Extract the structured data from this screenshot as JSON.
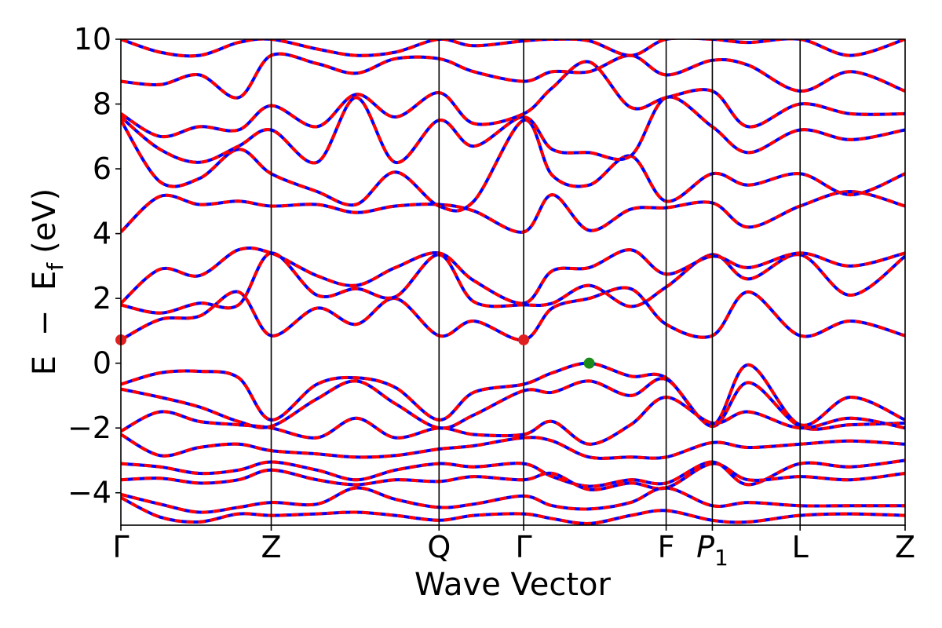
{
  "chart_data": {
    "type": "line",
    "title": "",
    "xlabel": "Wave Vector",
    "ylabel": {
      "E": "E",
      "minus": "−",
      "Ef_main": "E",
      "Ef_sub": "f",
      "unit": "(eV)"
    },
    "ylim": [
      -5,
      10
    ],
    "yticks": [
      -4,
      -2,
      0,
      2,
      4,
      6,
      8,
      10
    ],
    "ytick_labels": [
      "−4",
      "−2",
      "0",
      "2",
      "4",
      "6",
      "8",
      "10"
    ],
    "xlim": [
      0,
      1
    ],
    "high_symmetry_points": [
      {
        "label": "Γ",
        "x": 0.0
      },
      {
        "label": "Z",
        "x": 0.1917
      },
      {
        "label": "Q",
        "x": 0.4057
      },
      {
        "label": "Γ",
        "x": 0.5136
      },
      {
        "label": "F",
        "x": 0.6953
      },
      {
        "label": "P",
        "sub": "1",
        "x": 0.7542
      },
      {
        "label": "L",
        "x": 0.8661
      },
      {
        "label": "Z",
        "x": 1.0
      }
    ],
    "grid": false,
    "series_styles": {
      "spin_up_color": "#0000ff",
      "spin_down_color": "#ff0000"
    },
    "markers": [
      {
        "kind": "conduction_band_minimum",
        "x": 0.0,
        "y": 0.72,
        "color": "#e0201e"
      },
      {
        "kind": "conduction_band_minimum",
        "x": 0.5136,
        "y": 0.72,
        "color": "#e0201e"
      },
      {
        "kind": "valence_band_maximum",
        "x": 0.5972,
        "y": 0.0,
        "color": "#1a8a1a"
      }
    ],
    "bands": [
      {
        "x": [
          0,
          0.05,
          0.1,
          0.15,
          0.1917,
          0.25,
          0.3,
          0.35,
          0.4057,
          0.45,
          0.5136,
          0.55,
          0.5972,
          0.65,
          0.6953,
          0.7542,
          0.8,
          0.8661,
          0.93,
          1.0
        ],
        "y": [
          -0.65,
          -0.3,
          -0.25,
          -0.45,
          -1.75,
          -0.65,
          -0.45,
          -0.75,
          -1.75,
          -0.9,
          -0.65,
          -0.3,
          0.0,
          -0.4,
          -0.45,
          -1.9,
          -0.05,
          -1.9,
          -1.05,
          -1.75
        ]
      },
      {
        "x": [
          0,
          0.05,
          0.1,
          0.15,
          0.1917,
          0.25,
          0.3,
          0.35,
          0.4057,
          0.45,
          0.5136,
          0.55,
          0.5972,
          0.65,
          0.6953,
          0.7542,
          0.8,
          0.8661,
          0.93,
          1.0
        ],
        "y": [
          -0.8,
          -1.05,
          -1.35,
          -1.8,
          -1.95,
          -1.1,
          -0.55,
          -1.25,
          -2.0,
          -1.6,
          -0.85,
          -0.9,
          -0.55,
          -1.0,
          -0.5,
          -1.95,
          -0.6,
          -1.95,
          -1.9,
          -1.85
        ]
      },
      {
        "x": [
          0,
          0.05,
          0.1,
          0.15,
          0.1917,
          0.25,
          0.3,
          0.35,
          0.4057,
          0.45,
          0.5136,
          0.55,
          0.5972,
          0.65,
          0.6953,
          0.7542,
          0.8,
          0.8661,
          0.93,
          1.0
        ],
        "y": [
          -2.1,
          -1.5,
          -1.8,
          -1.9,
          -2.0,
          -2.3,
          -1.7,
          -2.3,
          -2.0,
          -2.2,
          -2.2,
          -1.8,
          -2.5,
          -1.9,
          -1.05,
          -1.85,
          -1.5,
          -2.0,
          -1.7,
          -2.0
        ]
      },
      {
        "x": [
          0,
          0.05,
          0.1,
          0.15,
          0.1917,
          0.25,
          0.3,
          0.35,
          0.4057,
          0.45,
          0.5136,
          0.55,
          0.5972,
          0.65,
          0.6953,
          0.7542,
          0.8,
          0.8661,
          0.93,
          1.0
        ],
        "y": [
          -2.2,
          -2.85,
          -2.6,
          -2.5,
          -2.7,
          -2.8,
          -2.9,
          -2.85,
          -2.65,
          -2.55,
          -2.3,
          -2.4,
          -2.9,
          -2.9,
          -2.9,
          -2.45,
          -2.6,
          -2.5,
          -2.4,
          -2.5
        ]
      },
      {
        "x": [
          0,
          0.05,
          0.1,
          0.15,
          0.1917,
          0.25,
          0.3,
          0.35,
          0.4057,
          0.45,
          0.5136,
          0.55,
          0.5972,
          0.65,
          0.6953,
          0.7542,
          0.8,
          0.8661,
          0.93,
          1.0
        ],
        "y": [
          -3.1,
          -3.2,
          -3.4,
          -3.3,
          -3.05,
          -3.3,
          -3.6,
          -3.3,
          -3.1,
          -3.2,
          -3.1,
          -3.5,
          -3.8,
          -3.6,
          -3.7,
          -3.05,
          -3.75,
          -3.1,
          -3.2,
          -3.0
        ]
      },
      {
        "x": [
          0,
          0.05,
          0.1,
          0.15,
          0.1917,
          0.25,
          0.3,
          0.35,
          0.4057,
          0.45,
          0.5136,
          0.55,
          0.5972,
          0.65,
          0.6953,
          0.7542,
          0.8,
          0.8661,
          0.93,
          1.0
        ],
        "y": [
          -3.6,
          -3.55,
          -3.7,
          -3.6,
          -3.3,
          -3.6,
          -3.75,
          -3.6,
          -3.65,
          -3.5,
          -3.6,
          -3.4,
          -3.9,
          -3.7,
          -3.85,
          -3.1,
          -3.6,
          -3.5,
          -3.6,
          -3.4
        ]
      },
      {
        "x": [
          0,
          0.05,
          0.1,
          0.15,
          0.1917,
          0.25,
          0.3,
          0.35,
          0.4057,
          0.45,
          0.5136,
          0.55,
          0.5972,
          0.65,
          0.6953,
          0.7542,
          0.8,
          0.8661,
          0.93,
          1.0
        ],
        "y": [
          -4.05,
          -4.35,
          -4.6,
          -4.45,
          -4.3,
          -4.35,
          -3.85,
          -4.2,
          -4.45,
          -4.35,
          -4.1,
          -4.4,
          -4.5,
          -4.3,
          -3.85,
          -4.4,
          -4.3,
          -4.4,
          -4.4,
          -4.4
        ]
      },
      {
        "x": [
          0,
          0.05,
          0.1,
          0.15,
          0.1917,
          0.25,
          0.3,
          0.35,
          0.4057,
          0.45,
          0.5136,
          0.55,
          0.5972,
          0.65,
          0.6953,
          0.7542,
          0.8,
          0.8661,
          0.93,
          1.0
        ],
        "y": [
          -4.15,
          -4.75,
          -4.9,
          -4.65,
          -4.7,
          -4.65,
          -4.6,
          -4.7,
          -4.85,
          -4.7,
          -4.65,
          -4.8,
          -4.95,
          -4.7,
          -4.55,
          -4.85,
          -4.9,
          -4.7,
          -4.65,
          -4.7
        ]
      },
      {
        "x": [
          0,
          0.05,
          0.1,
          0.15,
          0.1917,
          0.25,
          0.3,
          0.35,
          0.4057,
          0.45,
          0.5136,
          0.55,
          0.5972,
          0.65,
          0.6953,
          0.7542,
          0.8,
          0.8661,
          0.93,
          1.0
        ],
        "y": [
          0.72,
          1.35,
          1.45,
          2.2,
          0.85,
          1.7,
          1.2,
          2.0,
          0.85,
          1.3,
          0.72,
          1.7,
          2.0,
          2.3,
          1.2,
          0.85,
          2.2,
          0.85,
          1.3,
          0.85
        ]
      },
      {
        "x": [
          0,
          0.05,
          0.1,
          0.15,
          0.1917,
          0.25,
          0.3,
          0.35,
          0.4057,
          0.45,
          0.5136,
          0.55,
          0.5972,
          0.65,
          0.6953,
          0.7542,
          0.8,
          0.8661,
          0.93,
          1.0
        ],
        "y": [
          1.8,
          1.55,
          1.85,
          1.8,
          3.4,
          2.1,
          2.3,
          2.05,
          3.35,
          1.9,
          1.8,
          1.85,
          2.4,
          1.75,
          2.35,
          3.35,
          2.6,
          3.35,
          2.1,
          3.3
        ]
      },
      {
        "x": [
          0,
          0.05,
          0.1,
          0.15,
          0.1917,
          0.25,
          0.3,
          0.35,
          0.4057,
          0.45,
          0.5136,
          0.55,
          0.5972,
          0.65,
          0.6953,
          0.7542,
          0.8,
          0.8661,
          0.93,
          1.0
        ],
        "y": [
          1.85,
          2.9,
          2.7,
          3.5,
          3.4,
          2.7,
          2.4,
          2.95,
          3.4,
          2.55,
          1.85,
          2.85,
          2.95,
          3.5,
          2.75,
          3.3,
          2.95,
          3.4,
          3.0,
          3.4
        ]
      },
      {
        "x": [
          0,
          0.05,
          0.1,
          0.15,
          0.1917,
          0.25,
          0.3,
          0.35,
          0.4057,
          0.45,
          0.5136,
          0.55,
          0.5972,
          0.65,
          0.6953,
          0.7542,
          0.8,
          0.8661,
          0.93,
          1.0
        ],
        "y": [
          4.05,
          5.15,
          4.9,
          5.0,
          4.85,
          4.9,
          4.65,
          4.85,
          4.9,
          4.7,
          4.05,
          5.2,
          4.1,
          4.75,
          4.8,
          4.95,
          4.2,
          4.85,
          5.3,
          4.85
        ]
      },
      {
        "x": [
          0,
          0.05,
          0.1,
          0.15,
          0.1917,
          0.25,
          0.3,
          0.35,
          0.4057,
          0.45,
          0.5136,
          0.55,
          0.5972,
          0.65,
          0.6953,
          0.7542,
          0.8,
          0.8661,
          0.93,
          1.0
        ],
        "y": [
          7.5,
          5.6,
          5.7,
          6.6,
          5.85,
          5.3,
          4.9,
          5.9,
          4.85,
          5.0,
          7.5,
          5.8,
          5.5,
          6.4,
          5.0,
          5.85,
          5.5,
          5.85,
          5.2,
          5.85
        ]
      },
      {
        "x": [
          0,
          0.05,
          0.1,
          0.15,
          0.1917,
          0.25,
          0.3,
          0.35,
          0.4057,
          0.45,
          0.5136,
          0.55,
          0.5972,
          0.65,
          0.6953,
          0.7542,
          0.8,
          0.8661,
          0.93,
          1.0
        ],
        "y": [
          7.6,
          6.6,
          6.2,
          6.7,
          7.2,
          6.2,
          8.2,
          6.2,
          7.5,
          6.7,
          7.6,
          6.6,
          6.5,
          6.4,
          8.2,
          7.3,
          6.5,
          7.2,
          6.9,
          7.2
        ]
      },
      {
        "x": [
          0,
          0.05,
          0.1,
          0.15,
          0.1917,
          0.25,
          0.3,
          0.35,
          0.4057,
          0.45,
          0.5136,
          0.55,
          0.5972,
          0.65,
          0.6953,
          0.7542,
          0.8,
          0.8661,
          0.93,
          1.0
        ],
        "y": [
          7.7,
          7.0,
          7.3,
          7.2,
          7.95,
          7.3,
          8.3,
          7.6,
          8.35,
          7.4,
          7.7,
          8.5,
          9.3,
          7.9,
          8.2,
          8.4,
          7.3,
          8.0,
          7.7,
          7.7
        ]
      },
      {
        "x": [
          0,
          0.05,
          0.1,
          0.15,
          0.1917,
          0.25,
          0.3,
          0.35,
          0.4057,
          0.45,
          0.5136,
          0.55,
          0.5972,
          0.65,
          0.6953,
          0.7542,
          0.8,
          0.8661,
          0.93,
          1.0
        ],
        "y": [
          8.7,
          8.6,
          8.9,
          8.2,
          9.5,
          9.25,
          8.95,
          9.4,
          9.4,
          9.0,
          8.7,
          9.0,
          9.0,
          9.5,
          8.9,
          9.35,
          9.2,
          8.4,
          9.0,
          8.4
        ]
      },
      {
        "x": [
          0,
          0.05,
          0.1,
          0.15,
          0.1917,
          0.25,
          0.3,
          0.35,
          0.4057,
          0.45,
          0.5136,
          0.55,
          0.5972,
          0.65,
          0.6953,
          0.7542,
          0.8,
          0.8661,
          0.93,
          1.0
        ],
        "y": [
          10.0,
          9.6,
          9.5,
          9.9,
          10.0,
          9.7,
          9.5,
          9.6,
          10.0,
          9.8,
          9.95,
          10.0,
          9.95,
          9.5,
          10.0,
          10.0,
          9.9,
          10.0,
          9.5,
          10.0
        ]
      }
    ]
  }
}
